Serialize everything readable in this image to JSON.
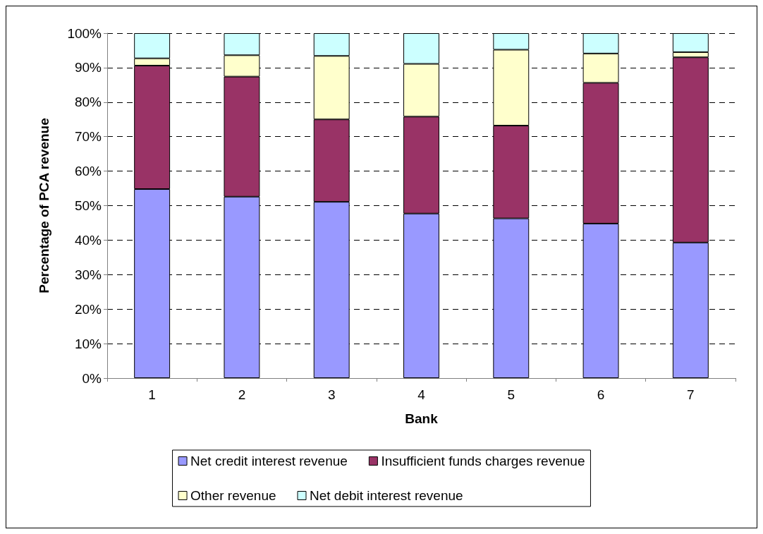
{
  "chart_data": {
    "type": "bar",
    "stacked": true,
    "xlabel": "Bank",
    "ylabel": "Percentage of PCA revenue",
    "categories": [
      "1",
      "2",
      "3",
      "4",
      "5",
      "6",
      "7"
    ],
    "series": [
      {
        "name": "Net credit interest revenue",
        "color": "#9999ff",
        "values": [
          54.8,
          52.6,
          51.1,
          47.7,
          46.3,
          44.8,
          39.3
        ]
      },
      {
        "name": "Insufficient funds charges revenue",
        "color": "#993366",
        "values": [
          35.8,
          34.8,
          23.9,
          28.1,
          26.9,
          40.8,
          53.7
        ]
      },
      {
        "name": "Other revenue",
        "color": "#ffffcc",
        "values": [
          2.1,
          6.2,
          18.4,
          15.3,
          22.0,
          8.5,
          1.5
        ]
      },
      {
        "name": "Net debit interest revenue",
        "color": "#ccffff",
        "values": [
          7.3,
          6.4,
          6.6,
          8.9,
          4.8,
          5.9,
          5.5
        ]
      }
    ],
    "ylim": [
      0,
      100
    ],
    "yticks": [
      {
        "value": 0,
        "label": "0%"
      },
      {
        "value": 10,
        "label": "10%"
      },
      {
        "value": 20,
        "label": "20%"
      },
      {
        "value": 30,
        "label": "30%"
      },
      {
        "value": 40,
        "label": "40%"
      },
      {
        "value": 50,
        "label": "50%"
      },
      {
        "value": 60,
        "label": "60%"
      },
      {
        "value": 70,
        "label": "70%"
      },
      {
        "value": 80,
        "label": "80%"
      },
      {
        "value": 90,
        "label": "90%"
      },
      {
        "value": 100,
        "label": "100%"
      }
    ],
    "grid": "y",
    "legend": "bottom"
  }
}
